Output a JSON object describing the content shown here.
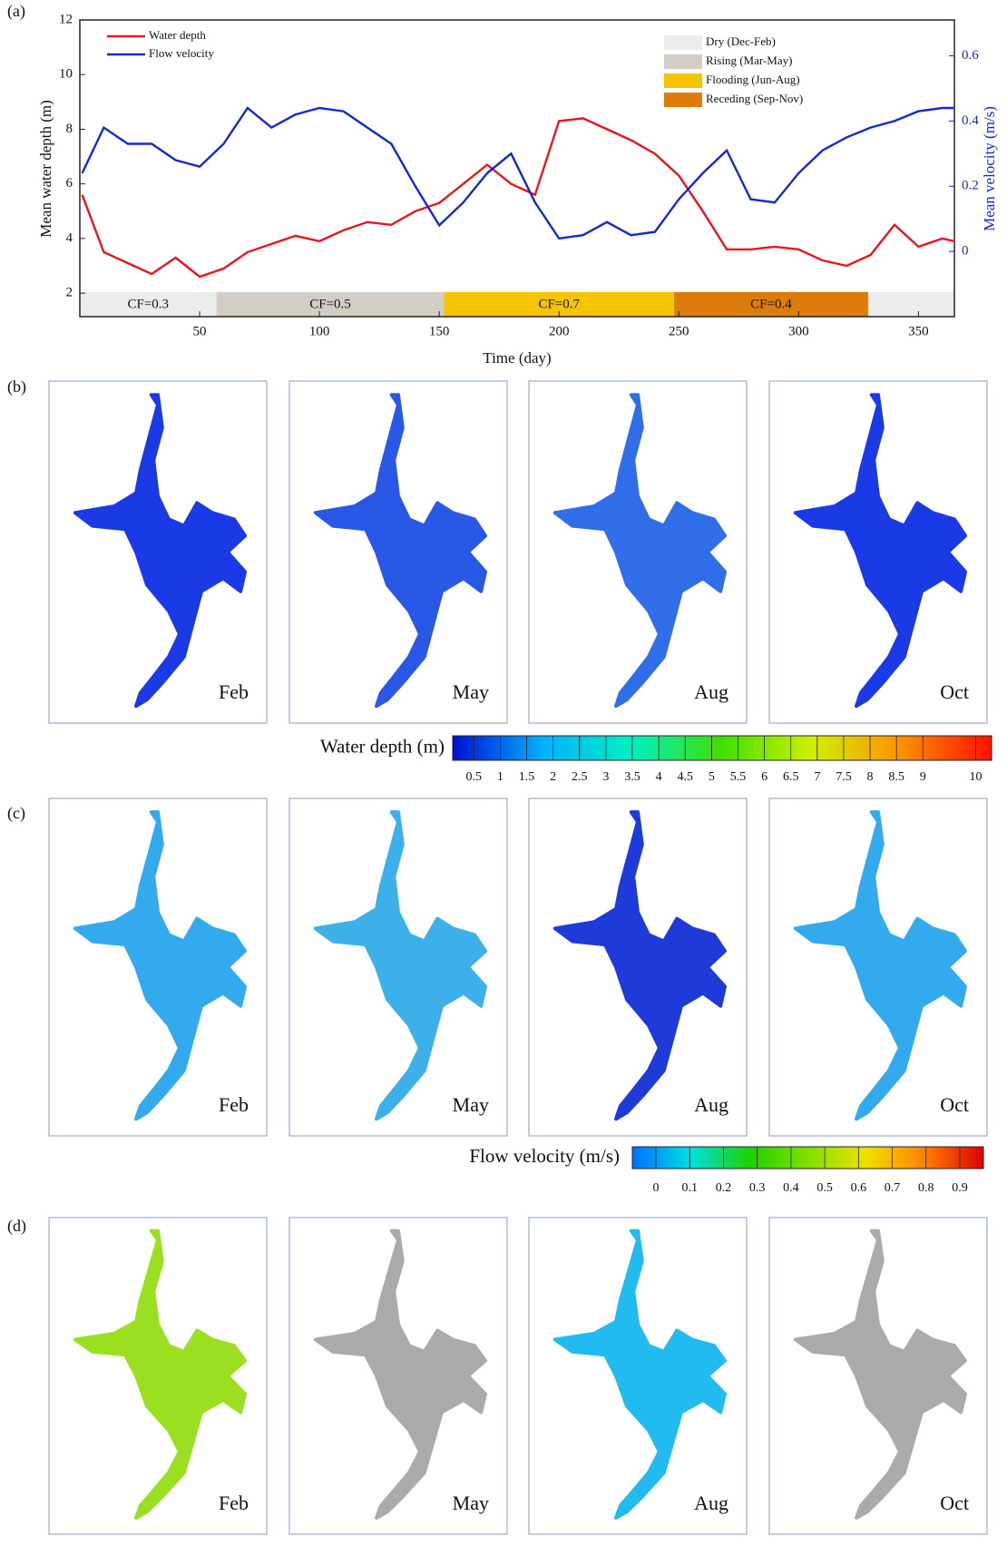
{
  "chart_data": {
    "type": "line",
    "panel_label": "(a)",
    "x_label": "Time (day)",
    "y_label": "Mean water depth (m)",
    "y2_label": "Mean velocity (m/s)",
    "x": [
      1,
      10,
      20,
      30,
      40,
      50,
      60,
      70,
      80,
      90,
      100,
      110,
      120,
      130,
      140,
      150,
      160,
      170,
      180,
      190,
      200,
      210,
      220,
      230,
      240,
      250,
      260,
      270,
      280,
      290,
      300,
      310,
      320,
      330,
      340,
      350,
      360,
      365
    ],
    "series": [
      {
        "name": "Water depth",
        "color": "#e8141e",
        "values": [
          5.6,
          3.5,
          3.1,
          2.7,
          3.3,
          2.6,
          2.9,
          3.5,
          3.8,
          4.1,
          3.9,
          4.3,
          4.6,
          4.5,
          5.0,
          5.3,
          6.0,
          6.7,
          6.0,
          5.6,
          8.3,
          8.4,
          8.0,
          7.6,
          7.1,
          6.3,
          5.0,
          3.6,
          3.6,
          3.7,
          3.6,
          3.2,
          3.0,
          3.4,
          4.5,
          3.7,
          4.0,
          3.9
        ]
      },
      {
        "name": "Flow velocity",
        "color": "#1428d0",
        "axis": "y2",
        "values": [
          0.24,
          0.38,
          0.33,
          0.33,
          0.28,
          0.26,
          0.33,
          0.44,
          0.38,
          0.42,
          0.44,
          0.43,
          0.38,
          0.33,
          0.2,
          0.08,
          0.15,
          0.24,
          0.3,
          0.15,
          0.04,
          0.05,
          0.09,
          0.05,
          0.06,
          0.16,
          0.24,
          0.31,
          0.16,
          0.15,
          0.24,
          0.31,
          0.35,
          0.38,
          0.4,
          0.43,
          0.44,
          0.44
        ]
      }
    ],
    "xlim": [
      0,
      365
    ],
    "xticks": [
      50,
      100,
      150,
      200,
      250,
      300,
      350
    ],
    "ylim": [
      1.14,
      12
    ],
    "yticks": [
      2,
      4,
      6,
      8,
      10,
      12
    ],
    "y2lim": [
      -0.2,
      0.71
    ],
    "y2ticks": [
      0,
      0.2,
      0.4,
      0.6
    ],
    "seasons": [
      {
        "name": "Dry (Dec-Feb)",
        "color": "#ececec"
      },
      {
        "name": "Rising (Mar-May)",
        "color": "#d3cdc6"
      },
      {
        "name": "Flooding (Jun-Aug)",
        "color": "#f5c400"
      },
      {
        "name": "Receding (Sep-Nov)",
        "color": "#dd7c0a"
      }
    ],
    "cf_bars": [
      {
        "start": 0,
        "end": 57,
        "label": "CF=0.3",
        "color": "#ececec"
      },
      {
        "start": 57,
        "end": 152,
        "label": "CF=0.5",
        "color": "#d3cdc6"
      },
      {
        "start": 152,
        "end": 248,
        "label": "CF=0.7",
        "color": "#f5c400"
      },
      {
        "start": 248,
        "end": 329,
        "label": "CF=0.4",
        "color": "#dd7c0a"
      },
      {
        "start": 329,
        "end": 365,
        "color": "#ececec"
      }
    ]
  },
  "panels": [
    {
      "label": "(b)",
      "maps": [
        "Feb",
        "May",
        "Aug",
        "Oct"
      ],
      "colorbar": {
        "title": "Water depth (m)",
        "lim": [
          0.1,
          10.3
        ],
        "ticks": [
          0.5,
          1,
          1.5,
          2,
          2.5,
          3,
          3.5,
          4,
          4.5,
          5,
          5.5,
          6,
          6.5,
          7,
          7.5,
          8,
          8.5,
          9,
          10
        ]
      }
    },
    {
      "label": "(c)",
      "maps": [
        "Feb",
        "May",
        "Aug",
        "Oct"
      ],
      "colorbar": {
        "title": "Flow velocity (m/s)",
        "lim": [
          -0.07,
          0.97
        ],
        "ticks": [
          0,
          0.1,
          0.2,
          0.3,
          0.4,
          0.5,
          0.6,
          0.7,
          0.8,
          0.9
        ]
      }
    },
    {
      "label": "(d)",
      "maps": [
        "Feb",
        "May",
        "Aug",
        "Oct"
      ]
    }
  ]
}
